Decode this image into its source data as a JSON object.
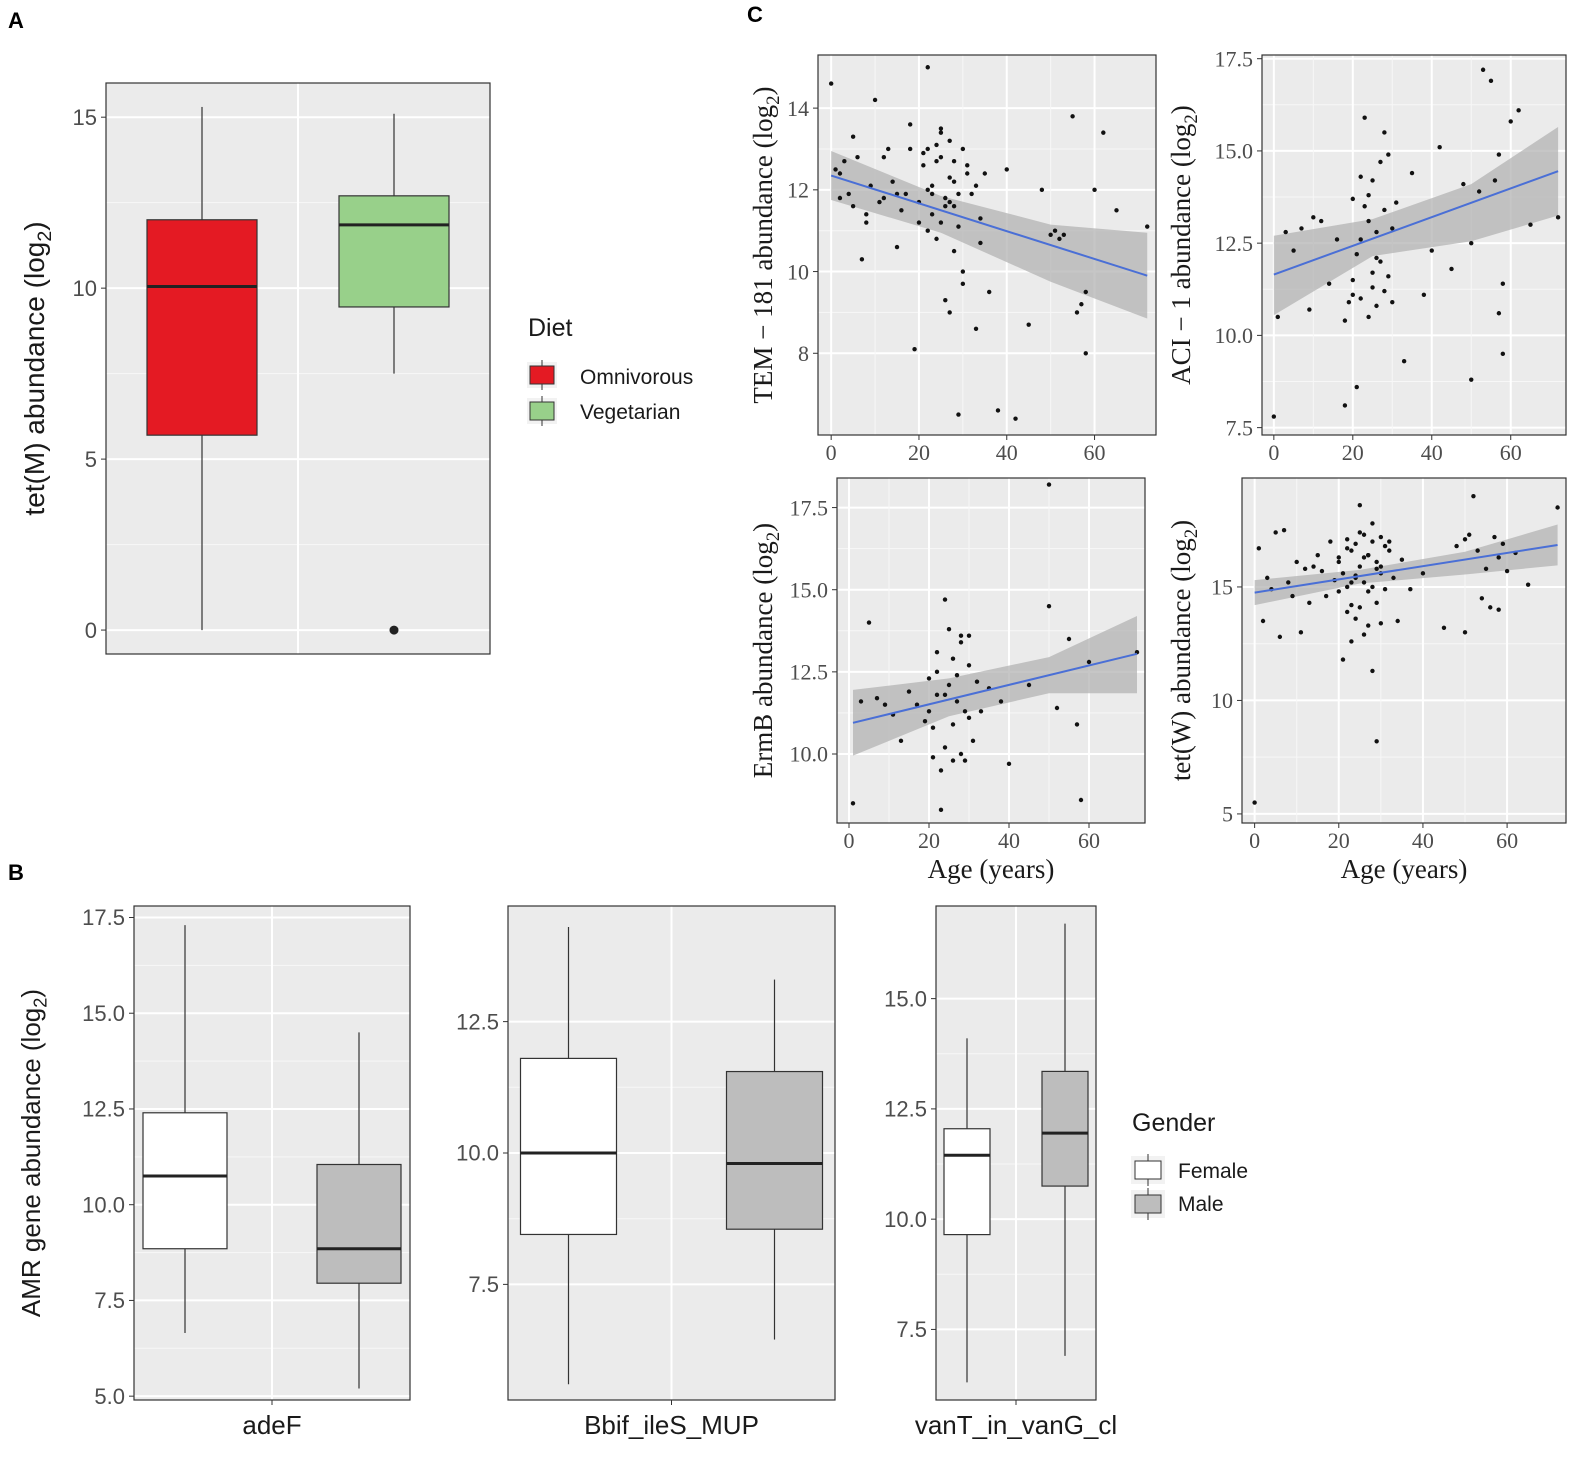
{
  "panel_labels": {
    "a": "A",
    "b": "B",
    "c": "C"
  },
  "legend_diet": {
    "title": "Diet",
    "items": [
      {
        "label": "Omnivorous",
        "color": "#e41a23"
      },
      {
        "label": "Vegetarian",
        "color": "#98d08a"
      }
    ]
  },
  "legend_gender": {
    "title": "Gender",
    "items": [
      {
        "label": "Female",
        "color": "#ffffff"
      },
      {
        "label": "Male",
        "color": "#bdbdbd"
      }
    ]
  },
  "colors": {
    "panel_bg": "#ebebeb",
    "grid": "#ffffff",
    "fit_line": "#4a6fd6",
    "ci_band": "#b3b3b3",
    "point": "#111111"
  },
  "chart_data": [
    {
      "id": "A",
      "type": "box",
      "ylabel": "tet(M) abundance (log",
      "ylabel_sub": "2",
      "ylim": [
        -0.7,
        16.0
      ],
      "yticks": [
        0,
        5,
        10,
        15
      ],
      "categories": [
        "Omnivorous",
        "Vegetarian"
      ],
      "boxes": [
        {
          "name": "Omnivorous",
          "whisker_low": 0.0,
          "q1": 5.7,
          "median": 10.05,
          "q3": 12.0,
          "whisker_high": 15.3,
          "outliers": [],
          "color": "#e41a23"
        },
        {
          "name": "Vegetarian",
          "whisker_low": 7.5,
          "q1": 9.45,
          "median": 11.85,
          "q3": 12.7,
          "whisker_high": 15.1,
          "outliers": [
            0.0
          ],
          "color": "#98d08a"
        }
      ]
    },
    {
      "id": "B1",
      "type": "box",
      "ylabel": "AMR gene abundance (log",
      "ylabel_sub": "2",
      "xlabel": "adeF",
      "ylim": [
        4.9,
        17.8
      ],
      "yticks": [
        5.0,
        7.5,
        10.0,
        12.5,
        15.0,
        17.5
      ],
      "ytick_labels": [
        "5.0",
        "7.5",
        "10.0",
        "12.5",
        "15.0",
        "17.5"
      ],
      "boxes": [
        {
          "name": "Female",
          "whisker_low": 6.65,
          "q1": 8.85,
          "median": 10.75,
          "q3": 12.4,
          "whisker_high": 17.3,
          "outliers": [],
          "color": "#ffffff"
        },
        {
          "name": "Male",
          "whisker_low": 5.2,
          "q1": 7.95,
          "median": 8.85,
          "q3": 11.05,
          "whisker_high": 14.5,
          "outliers": [],
          "color": "#bdbdbd"
        }
      ]
    },
    {
      "id": "B2",
      "type": "box",
      "xlabel": "Bbif_ileS_MUP",
      "ylim": [
        5.3,
        14.7
      ],
      "yticks": [
        7.5,
        10.0,
        12.5
      ],
      "ytick_labels": [
        "7.5",
        "10.0",
        "12.5"
      ],
      "boxes": [
        {
          "name": "Female",
          "whisker_low": 5.6,
          "q1": 8.45,
          "median": 10.0,
          "q3": 11.8,
          "whisker_high": 14.3,
          "outliers": [],
          "color": "#ffffff"
        },
        {
          "name": "Male",
          "whisker_low": 6.45,
          "q1": 8.55,
          "median": 9.8,
          "q3": 11.55,
          "whisker_high": 13.3,
          "outliers": [],
          "color": "#bdbdbd"
        }
      ]
    },
    {
      "id": "B3",
      "type": "box",
      "xlabel": "vanT_in_vanG_cl",
      "ylim": [
        5.9,
        17.1
      ],
      "yticks": [
        7.5,
        10.0,
        12.5,
        15.0
      ],
      "ytick_labels": [
        "7.5",
        "10.0",
        "12.5",
        "15.0"
      ],
      "boxes": [
        {
          "name": "Female",
          "whisker_low": 6.3,
          "q1": 9.65,
          "median": 11.45,
          "q3": 12.05,
          "whisker_high": 14.1,
          "outliers": [],
          "color": "#ffffff"
        },
        {
          "name": "Male",
          "whisker_low": 6.9,
          "q1": 10.75,
          "median": 11.95,
          "q3": 13.35,
          "whisker_high": 16.7,
          "outliers": [],
          "color": "#bdbdbd"
        }
      ]
    },
    {
      "id": "C1",
      "type": "scatter",
      "ylabel": "TEM − 181 abundance (log",
      "ylabel_sub": "2",
      "xlim": [
        -3,
        74
      ],
      "ylim": [
        6.0,
        15.3
      ],
      "xticks": [
        0,
        20,
        40,
        60
      ],
      "yticks": [
        8,
        10,
        12,
        14
      ],
      "fit": {
        "x": [
          0,
          72
        ],
        "y": [
          12.35,
          9.9
        ]
      },
      "ci": {
        "x": [
          0,
          25,
          50,
          72
        ],
        "upper": [
          12.95,
          11.85,
          11.15,
          10.95
        ],
        "lower": [
          11.75,
          10.95,
          9.75,
          8.85
        ]
      },
      "x": [
        0,
        1,
        2,
        3,
        4,
        5,
        6,
        7,
        8,
        9,
        10,
        11,
        12,
        13,
        14,
        15,
        16,
        17,
        18,
        19,
        20,
        21,
        22,
        22,
        23,
        23,
        24,
        24,
        25,
        25,
        26,
        26,
        27,
        27,
        28,
        28,
        29,
        29,
        30,
        30,
        31,
        32,
        33,
        34,
        35,
        36,
        38,
        40,
        42,
        45,
        48,
        50,
        51,
        52,
        53,
        55,
        56,
        57,
        58,
        58,
        60,
        62,
        65,
        72,
        2,
        5,
        8,
        12,
        15,
        18,
        20,
        21,
        22,
        24,
        25,
        26,
        27,
        28,
        29,
        30,
        31,
        33,
        34,
        22,
        25,
        28,
        23,
        27
      ],
      "y": [
        14.6,
        12.5,
        11.8,
        12.7,
        11.9,
        13.3,
        12.8,
        10.3,
        11.4,
        12.1,
        14.2,
        11.7,
        11.8,
        13.0,
        12.2,
        10.6,
        11.5,
        11.9,
        13.6,
        8.1,
        11.7,
        12.9,
        15.0,
        13.0,
        12.1,
        11.4,
        12.7,
        10.8,
        13.4,
        11.2,
        11.8,
        9.3,
        12.3,
        9.0,
        11.6,
        10.5,
        6.5,
        11.1,
        9.7,
        10.0,
        12.6,
        11.9,
        8.6,
        10.7,
        12.4,
        9.5,
        6.6,
        12.5,
        6.4,
        8.7,
        12.0,
        10.9,
        11.0,
        10.8,
        10.9,
        13.8,
        9.0,
        9.2,
        8.0,
        9.5,
        12.0,
        13.4,
        11.5,
        11.1,
        12.4,
        11.6,
        11.2,
        12.8,
        11.9,
        13.0,
        11.2,
        12.6,
        12.0,
        13.1,
        12.8,
        11.6,
        13.2,
        12.7,
        11.9,
        13.0,
        12.4,
        12.1,
        11.3,
        11.0,
        13.5,
        12.2,
        11.9,
        11.7
      ]
    },
    {
      "id": "C2",
      "type": "scatter",
      "ylabel": "ACI − 1 abundance (log",
      "ylabel_sub": "2",
      "xlim": [
        -3,
        74
      ],
      "ylim": [
        7.3,
        17.6
      ],
      "xticks": [
        0,
        20,
        40,
        60
      ],
      "yticks": [
        7.5,
        10.0,
        12.5,
        15.0,
        17.5
      ],
      "ytick_labels": [
        "7.5",
        "10.0",
        "12.5",
        "15.0",
        "17.5"
      ],
      "fit": {
        "x": [
          0,
          72
        ],
        "y": [
          11.65,
          14.45
        ]
      },
      "ci": {
        "x": [
          0,
          25,
          50,
          72
        ],
        "upper": [
          12.7,
          13.15,
          14.1,
          15.65
        ],
        "lower": [
          10.55,
          12.15,
          12.55,
          13.25
        ]
      },
      "x": [
        0,
        1,
        3,
        5,
        7,
        9,
        10,
        12,
        14,
        16,
        18,
        19,
        20,
        20,
        21,
        21,
        22,
        22,
        23,
        23,
        24,
        24,
        25,
        25,
        25,
        26,
        26,
        27,
        27,
        28,
        28,
        29,
        29,
        30,
        31,
        33,
        35,
        38,
        40,
        42,
        45,
        48,
        50,
        50,
        52,
        53,
        55,
        56,
        57,
        57,
        58,
        58,
        60,
        62,
        65,
        72,
        22,
        24,
        26,
        28,
        30,
        20,
        18
      ],
      "y": [
        7.8,
        10.5,
        12.8,
        12.3,
        12.9,
        10.7,
        13.2,
        13.1,
        11.4,
        12.6,
        8.1,
        10.9,
        13.7,
        11.1,
        8.6,
        12.2,
        14.3,
        11.0,
        15.9,
        13.5,
        13.1,
        10.5,
        14.2,
        11.7,
        11.3,
        10.8,
        12.8,
        14.7,
        12.0,
        15.5,
        11.2,
        14.9,
        11.6,
        10.9,
        13.6,
        9.3,
        14.4,
        11.1,
        12.3,
        15.1,
        11.8,
        14.1,
        8.8,
        12.5,
        13.9,
        17.2,
        16.9,
        14.2,
        10.6,
        14.9,
        11.4,
        9.5,
        15.8,
        16.1,
        13.0,
        13.2,
        12.6,
        13.8,
        12.1,
        13.4,
        12.9,
        11.5,
        10.4
      ]
    },
    {
      "id": "C3",
      "type": "scatter",
      "ylabel": "ErmB abundance (log",
      "ylabel_sub": "2",
      "xlabel": "Age (years)",
      "xlim": [
        -3,
        74
      ],
      "ylim": [
        7.9,
        18.4
      ],
      "xticks": [
        0,
        20,
        40,
        60
      ],
      "yticks": [
        10.0,
        12.5,
        15.0,
        17.5
      ],
      "ytick_labels": [
        "10.0",
        "12.5",
        "15.0",
        "17.5"
      ],
      "fit": {
        "x": [
          1,
          72
        ],
        "y": [
          10.95,
          13.05
        ]
      },
      "ci": {
        "x": [
          1,
          25,
          50,
          72
        ],
        "upper": [
          11.95,
          12.3,
          12.95,
          14.2
        ],
        "lower": [
          9.95,
          11.15,
          11.85,
          11.85
        ]
      },
      "x": [
        1,
        3,
        5,
        7,
        9,
        11,
        13,
        15,
        17,
        19,
        20,
        20,
        21,
        21,
        22,
        22,
        23,
        23,
        24,
        24,
        25,
        25,
        26,
        26,
        27,
        27,
        28,
        28,
        29,
        29,
        30,
        30,
        31,
        33,
        35,
        38,
        40,
        45,
        50,
        50,
        52,
        55,
        57,
        58,
        60,
        72,
        22,
        24,
        26,
        28,
        30,
        32
      ],
      "y": [
        8.5,
        11.6,
        14.0,
        11.7,
        11.5,
        11.2,
        10.4,
        11.9,
        11.5,
        11.0,
        12.3,
        11.3,
        10.8,
        9.9,
        13.1,
        11.8,
        9.5,
        8.3,
        14.7,
        10.2,
        13.8,
        12.1,
        10.9,
        9.8,
        11.6,
        12.4,
        13.6,
        10.0,
        9.8,
        11.3,
        13.6,
        12.7,
        10.4,
        11.3,
        12.0,
        11.6,
        9.7,
        12.1,
        18.2,
        14.5,
        11.4,
        13.5,
        10.9,
        8.6,
        12.8,
        13.1,
        12.5,
        11.8,
        12.9,
        13.4,
        11.1,
        12.2
      ]
    },
    {
      "id": "C4",
      "type": "scatter",
      "ylabel": "tet(W) abundance (log",
      "ylabel_sub": "2",
      "xlabel": "Age (years)",
      "xlim": [
        -3,
        74
      ],
      "ylim": [
        4.6,
        19.8
      ],
      "xticks": [
        0,
        20,
        40,
        60
      ],
      "yticks": [
        5,
        10,
        15
      ],
      "fit": {
        "x": [
          0,
          72
        ],
        "y": [
          14.75,
          16.85
        ]
      },
      "ci": {
        "x": [
          0,
          25,
          50,
          72
        ],
        "upper": [
          15.3,
          15.75,
          16.55,
          17.75
        ],
        "lower": [
          14.2,
          15.15,
          15.55,
          15.95
        ]
      },
      "x": [
        0,
        1,
        2,
        3,
        4,
        5,
        6,
        7,
        8,
        9,
        10,
        11,
        12,
        13,
        14,
        15,
        16,
        17,
        18,
        19,
        20,
        20,
        21,
        21,
        22,
        22,
        22,
        23,
        23,
        23,
        24,
        24,
        24,
        25,
        25,
        25,
        26,
        26,
        26,
        27,
        27,
        27,
        28,
        28,
        28,
        29,
        29,
        29,
        30,
        30,
        30,
        31,
        31,
        32,
        33,
        34,
        35,
        37,
        40,
        45,
        48,
        50,
        50,
        51,
        52,
        53,
        54,
        55,
        56,
        57,
        58,
        58,
        59,
        60,
        62,
        65,
        72,
        20,
        22,
        24,
        26,
        28,
        30,
        32,
        23,
        27,
        25,
        29
      ],
      "y": [
        5.5,
        16.7,
        13.5,
        15.4,
        14.9,
        17.4,
        12.8,
        17.5,
        15.2,
        14.6,
        16.1,
        13.0,
        15.8,
        14.3,
        15.9,
        16.4,
        15.7,
        14.6,
        17.0,
        15.3,
        16.3,
        14.8,
        15.6,
        11.8,
        17.1,
        15.0,
        13.9,
        16.6,
        14.2,
        12.6,
        16.9,
        15.4,
        13.6,
        18.6,
        15.9,
        14.1,
        17.3,
        15.2,
        12.9,
        16.4,
        14.8,
        13.3,
        17.8,
        15.0,
        11.3,
        16.1,
        14.3,
        8.2,
        17.2,
        15.6,
        13.4,
        16.8,
        14.9,
        17.0,
        15.4,
        13.5,
        16.2,
        14.9,
        15.6,
        13.2,
        16.8,
        17.1,
        13.0,
        17.3,
        19.0,
        16.6,
        14.5,
        15.8,
        14.1,
        17.2,
        16.3,
        14.0,
        16.9,
        15.7,
        16.5,
        15.1,
        18.5,
        16.1,
        16.7,
        15.5,
        16.3,
        17.0,
        15.9,
        16.6,
        15.2,
        16.4,
        17.4,
        15.8
      ]
    }
  ]
}
